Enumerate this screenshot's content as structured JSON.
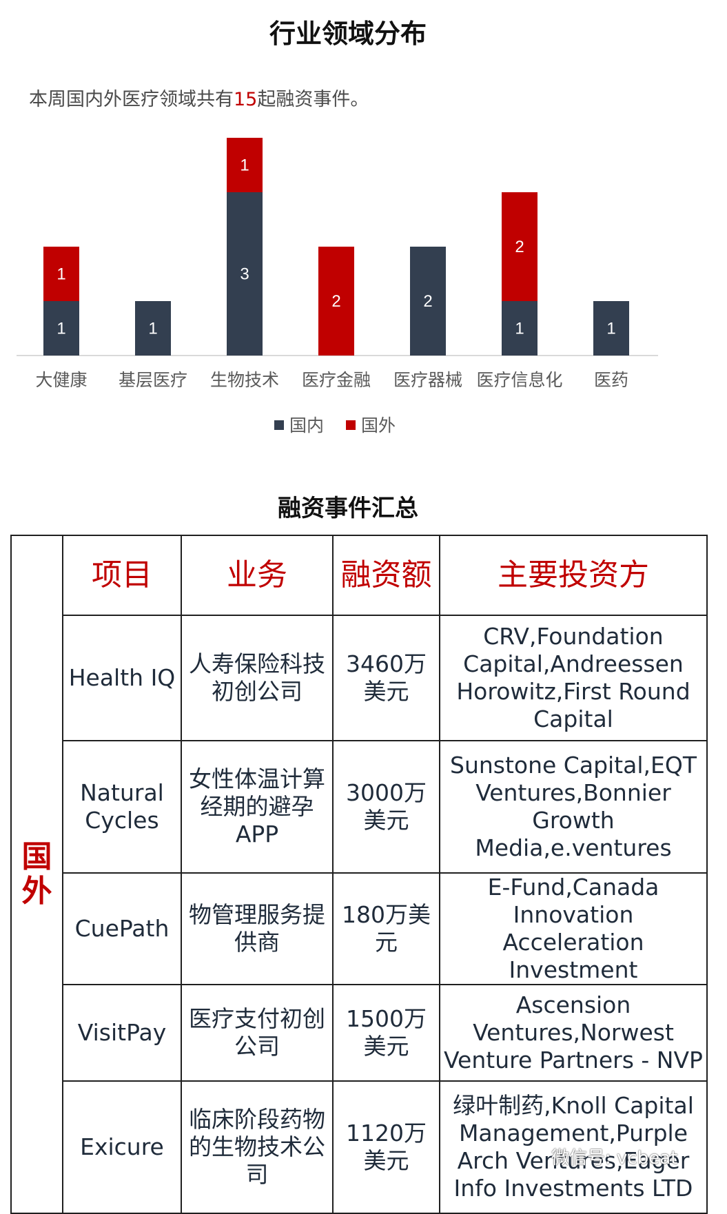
{
  "title_industry": "行业领域分布",
  "summary": {
    "prefix": "本周国内外医疗领域共有",
    "count": "15",
    "suffix": "起融资事件。"
  },
  "chart_data": {
    "type": "bar",
    "stacked": true,
    "categories": [
      "大健康",
      "基层医疗",
      "生物技术",
      "医疗金融",
      "医疗器械",
      "医疗信息化",
      "医药"
    ],
    "series": [
      {
        "name": "国内",
        "color": "#333f50",
        "values": [
          1,
          1,
          3,
          0,
          2,
          1,
          1
        ]
      },
      {
        "name": "国外",
        "color": "#c00000",
        "values": [
          1,
          0,
          1,
          2,
          0,
          2,
          0
        ]
      }
    ],
    "legend": "bottom",
    "data_labels": true
  },
  "title_summary": "融资事件汇总",
  "table": {
    "region": "国外",
    "headers": [
      "项目",
      "业务",
      "融资额",
      "主要投资方"
    ],
    "rows": [
      {
        "project": "Health IQ",
        "business": "人寿保险科技初创公司",
        "amount": "3460万美元",
        "investors": "CRV,Foundation Capital,Andreessen Horowitz,First Round Capital"
      },
      {
        "project": "Natural Cycles",
        "business": "女性体温计算经期的避孕APP",
        "amount": "3000万美元",
        "investors": "Sunstone Capital,EQT Ventures,Bonnier Growth Media,e.ventures"
      },
      {
        "project": "CuePath",
        "business": "物管理服务提供商",
        "amount": "180万美元",
        "investors": "E-Fund,Canada Innovation Acceleration Investment"
      },
      {
        "project": "VisitPay",
        "business": "医疗支付初创公司",
        "amount": "1500万美元",
        "investors": "Ascension Ventures,Norwest Venture Partners - NVP"
      },
      {
        "project": "Exicure",
        "business": "临床阶段药物的生物技术公司",
        "amount": "1120万美元",
        "investors": "绿叶制药,Knoll Capital Management,Purple Arch Ventures,Eager Info Investments LTD"
      }
    ]
  },
  "watermark": "微信号: vcbeat"
}
